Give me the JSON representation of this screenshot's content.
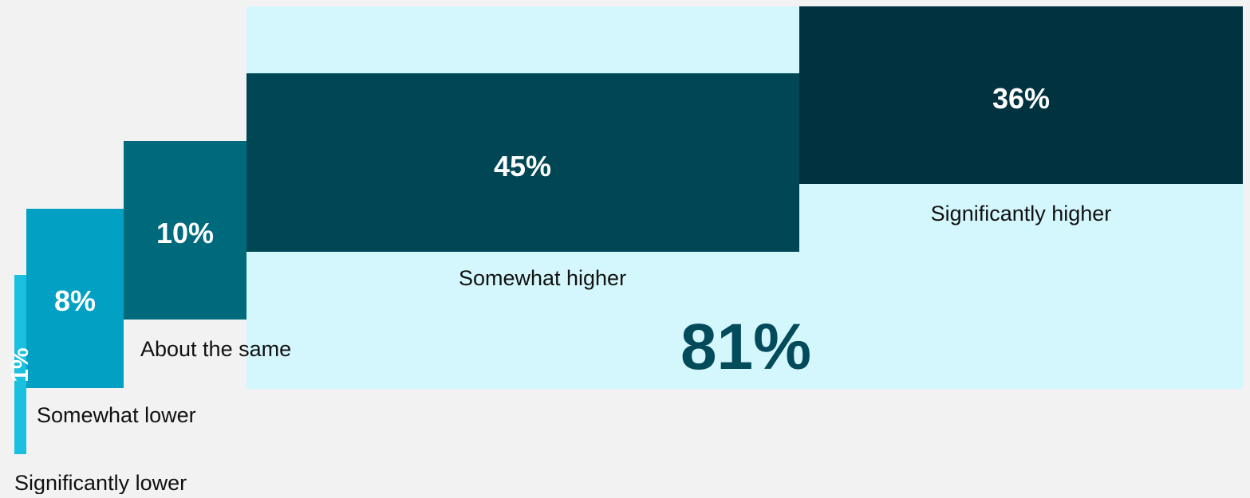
{
  "chart_data": {
    "type": "bar",
    "categories": [
      "Significantly lower",
      "Somewhat lower",
      "About the same",
      "Somewhat higher",
      "Significantly higher"
    ],
    "values": [
      1,
      8,
      10,
      45,
      36
    ],
    "value_labels": [
      "1%",
      "8%",
      "10%",
      "45%",
      "36%"
    ],
    "summary_label": "81%",
    "summary_covers": [
      "Somewhat higher",
      "Significantly higher"
    ],
    "colors": [
      "#19c0e0",
      "#02a0c2",
      "#006a7d",
      "#004655",
      "#00323f"
    ],
    "summary_color": "#d4f7fd",
    "summary_text_color": "#034b5b",
    "background": "#f2f2f2"
  }
}
